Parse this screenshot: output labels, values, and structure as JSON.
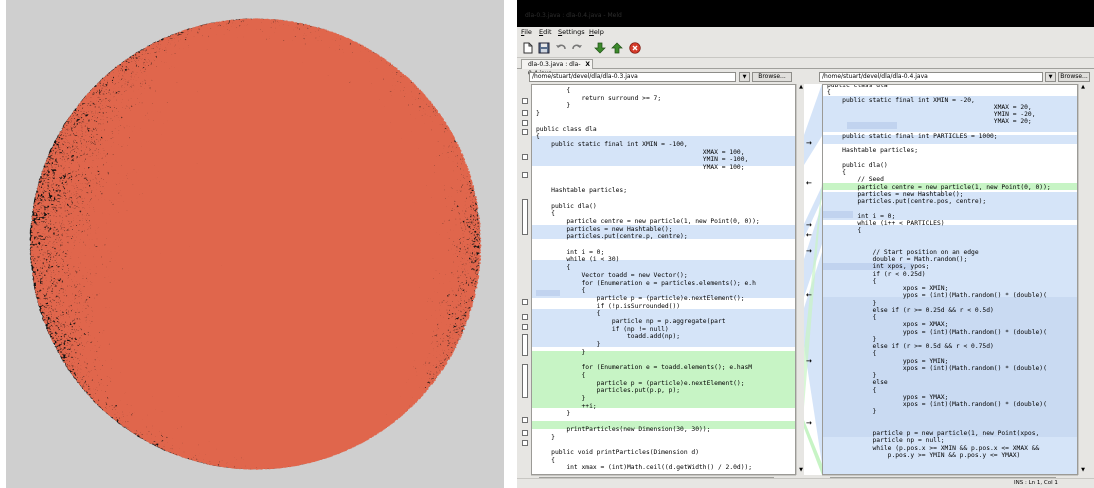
{
  "window": {
    "title": "dla-0.3.java : dla-0.4.java - Meld"
  },
  "menubar": [
    {
      "label": "File",
      "underline": "F",
      "rest": "ile"
    },
    {
      "label": "Edit",
      "underline": "E",
      "rest": "dit"
    },
    {
      "label": "Settings",
      "underline": "S",
      "rest": "ettings"
    },
    {
      "label": "Help",
      "underline": "H",
      "rest": "elp"
    }
  ],
  "toolbar": [
    {
      "name": "new-icon"
    },
    {
      "name": "save-icon"
    },
    {
      "name": "undo-icon"
    },
    {
      "name": "redo-icon"
    },
    {
      "name": "down-arrow-icon"
    },
    {
      "name": "up-arrow-icon"
    },
    {
      "name": "stop-icon"
    }
  ],
  "tab": {
    "label": "dla-0.3.java : dla-0.4.java",
    "close": "X"
  },
  "left_pane": {
    "path": "/home/stuart/devel/dla/dla-0.3.java",
    "browse": "Browse..."
  },
  "right_pane": {
    "path": "/home/stuart/devel/dla/dla-0.4.java",
    "browse": "Browse..."
  },
  "colors": {
    "changed": "#d5e4f8",
    "changed_strong": "#c1d3ef",
    "inserted": "#c7f4c5",
    "highlight_text": "#f2a5b5",
    "fractal_bg": "#cfcfcf",
    "particle": "#111111",
    "particle_accent": "#e0664c"
  },
  "left_lines": [
    "        {",
    "            return surround >= 7;",
    "        }",
    "}",
    "",
    "public class dla",
    "{",
    "    public static final int XMIN = -100,",
    "                                            XMAX = 100,",
    "                                            YMIN = -100,",
    "                                            YMAX = 100;",
    "",
    "",
    "    Hashtable particles;",
    "",
    "    public dla()",
    "    {",
    "        particle centre = new particle(1, new Point(0, 0));",
    "        particles = new Hashtable();",
    "        particles.put(centre.p, centre);",
    "",
    "        int i = 0;",
    "        while (i < 30)",
    "        {",
    "            Vector toadd = new Vector();",
    "            for (Enumeration e = particles.elements(); e.h",
    "            {",
    "                particle p = (particle)e.nextElement();",
    "                if (!p.isSurrounded())",
    "                {",
    "                    particle np = p.aggregate(part",
    "                    if (np != null)",
    "                        toadd.add(np);",
    "                }",
    "            }",
    "",
    "            for (Enumeration e = toadd.elements(); e.hasM",
    "            {",
    "                particle p = (particle)e.nextElement();",
    "                particles.put(p.p, p);",
    "            }",
    "            ++i;",
    "        }",
    "",
    "        printParticles(new Dimension(30, 30));",
    "    }",
    "",
    "    public void printParticles(Dimension d)",
    "    {",
    "        int xmax = (int)Math.ceil((d.getWidth() / 2.0d));"
  ],
  "right_lines": [
    "public class dla",
    "{",
    "    public static final int XMIN = -20,",
    "                                            XMAX = 20,",
    "                                            YMIN = -20,",
    "                                            YMAX = 20;",
    "",
    "    public static final int PARTICLES = 1000;",
    "",
    "    Hashtable particles;",
    "",
    "    public dla()",
    "    {",
    "        // Seed",
    "        particle centre = new particle(1, new Point(0, 0));",
    "        particles = new Hashtable();",
    "        particles.put(centre.pos, centre);",
    "",
    "        int i = 0;",
    "        while (i++ < PARTICLES)",
    "        {",
    "",
    "",
    "            // Start position on an edge",
    "            double r = Math.random();",
    "            int xpos, ypos;",
    "            if (r < 0.25d)",
    "            {",
    "                    xpos = XMIN;",
    "                    ypos = (int)(Math.random() * (double)(",
    "            }",
    "            else if (r >= 0.25d && r < 0.5d)",
    "            {",
    "                    xpos = XMAX;",
    "                    ypos = (int)(Math.random() * (double)(",
    "            }",
    "            else if (r >= 0.5d && r < 0.75d)",
    "            {",
    "                    ypos = YMIN;",
    "                    xpos = (int)(Math.random() * (double)(",
    "            }",
    "            else",
    "            {",
    "                    ypos = YMAX;",
    "                    xpos = (int)(Math.random() * (double)(",
    "            }",
    "",
    "",
    "            particle p = new particle(1, new Point(xpos,",
    "            particle np = null;",
    "            while (p.pos.x >= XMIN && p.pos.x <= XMAX &&",
    "                p.pos.y >= YMIN && p.pos.y <= YMAX)"
  ],
  "statusbar": {
    "cursor": "INS : Ln 1, Col 1"
  }
}
